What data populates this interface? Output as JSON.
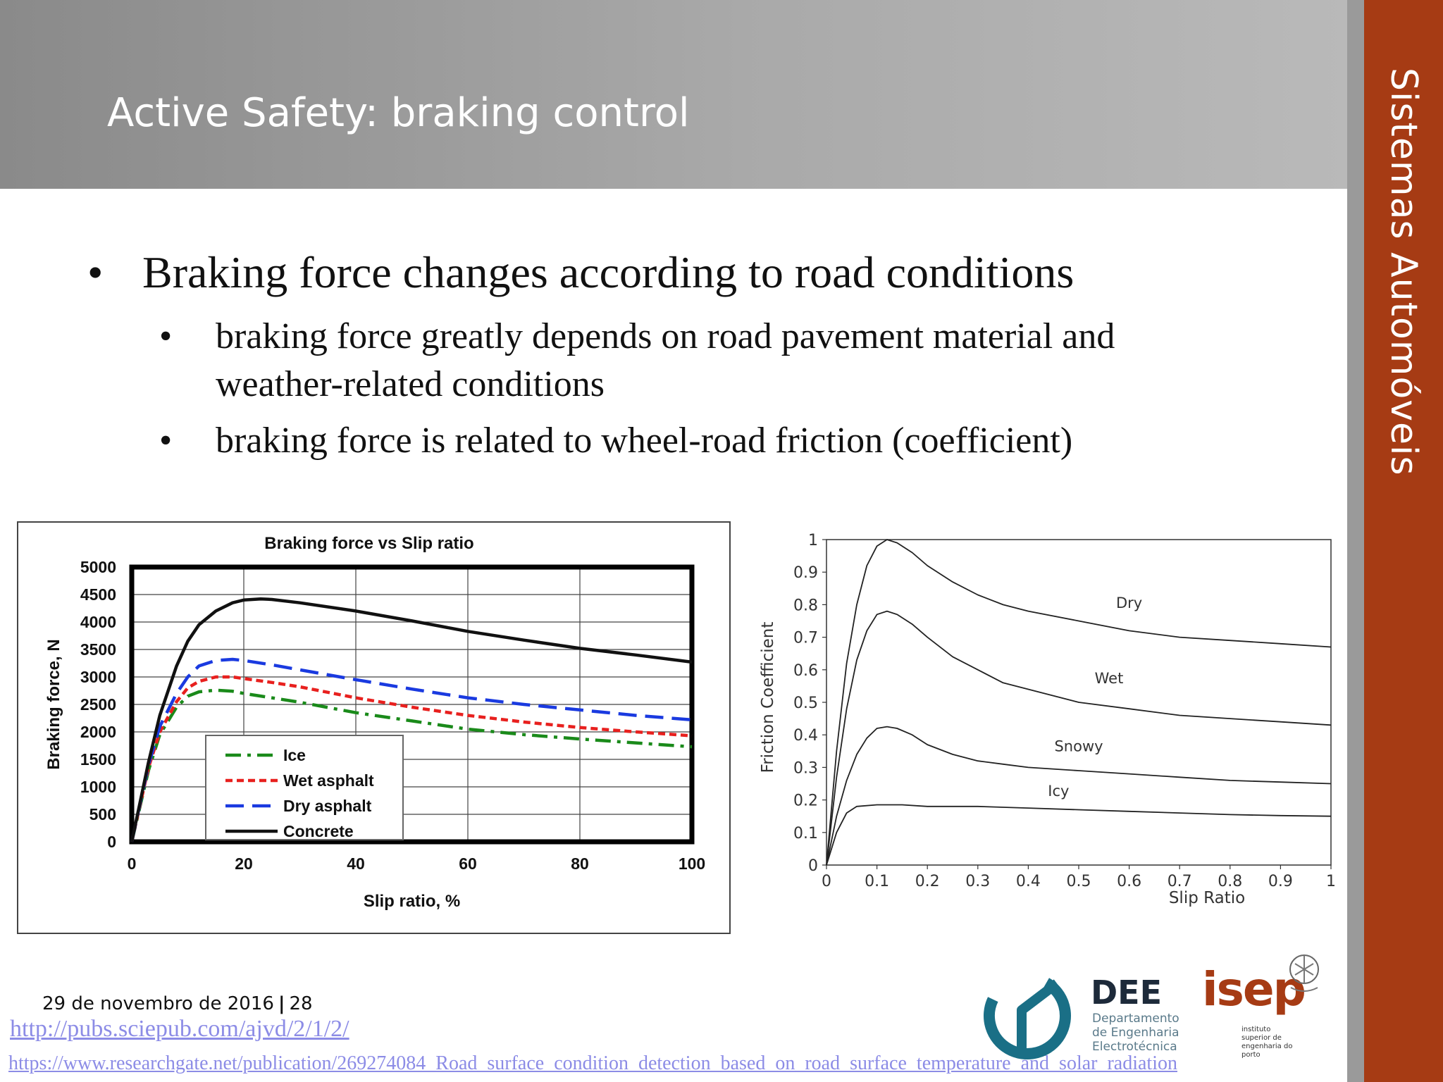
{
  "slide": {
    "title": "Active Safety: braking control",
    "side_label": "Sistemas Automóveis",
    "bullet_symbol": "•",
    "bullets": [
      {
        "text": "Braking force changes according to road conditions"
      },
      {
        "text": "braking force greatly depends on road pavement material and weather-related conditions"
      },
      {
        "text": "braking force is related to wheel-road friction (coefficient)"
      }
    ],
    "footer": {
      "date": "29 de novembro de 2016",
      "separator": "|",
      "page": "28"
    },
    "links": [
      "http://pubs.sciepub.com/ajvd/2/1/2/",
      "https://www.researchgate.net/publication/269274084_Road_surface_condition_detection_based_on_road_surface_temperature_and_solar_radiation"
    ],
    "logos": {
      "dee": {
        "title": "DEE",
        "lines": [
          "Departamento",
          "de Engenharia",
          "Electrotécnica"
        ],
        "color": "#1a6f86"
      },
      "isep": {
        "title": "isep",
        "lines": [
          "instituto",
          "superior de",
          "engenharia do",
          "porto"
        ],
        "color": "#a63b14"
      }
    },
    "colors": {
      "accent": "#a63b14",
      "header": "#9b9b9b"
    }
  },
  "chart_data": [
    {
      "type": "line",
      "title": "Braking force vs Slip ratio",
      "xlabel": "Slip ratio, %",
      "ylabel": "Braking force, N",
      "xlim": [
        0,
        100
      ],
      "ylim": [
        0,
        5000
      ],
      "xticks": [
        0,
        20,
        40,
        60,
        80,
        100
      ],
      "yticks": [
        0,
        500,
        1000,
        1500,
        2000,
        2500,
        3000,
        3500,
        4000,
        4500,
        5000
      ],
      "grid": true,
      "legend_position": "bottom-left",
      "series": [
        {
          "name": "Ice",
          "color": "#1a8a1a",
          "dash": "dashdot",
          "x": [
            0,
            3,
            5,
            8,
            10,
            12,
            15,
            18,
            20,
            25,
            30,
            40,
            50,
            60,
            70,
            80,
            90,
            100
          ],
          "y": [
            0,
            1300,
            1950,
            2450,
            2650,
            2730,
            2760,
            2740,
            2700,
            2620,
            2540,
            2350,
            2200,
            2050,
            1950,
            1870,
            1800,
            1730
          ]
        },
        {
          "name": "Wet asphalt",
          "color": "#e8201e",
          "dash": "dashed",
          "x": [
            0,
            3,
            5,
            8,
            10,
            12,
            15,
            18,
            20,
            25,
            30,
            40,
            50,
            60,
            70,
            80,
            90,
            100
          ],
          "y": [
            0,
            1350,
            2000,
            2550,
            2800,
            2920,
            3000,
            3000,
            2970,
            2900,
            2820,
            2620,
            2450,
            2300,
            2180,
            2080,
            2000,
            1930
          ]
        },
        {
          "name": "Dry asphalt",
          "color": "#1a3ae0",
          "dash": "longdash",
          "x": [
            0,
            3,
            5,
            8,
            10,
            12,
            15,
            18,
            20,
            25,
            30,
            40,
            50,
            60,
            70,
            80,
            90,
            100
          ],
          "y": [
            0,
            1400,
            2100,
            2700,
            3000,
            3200,
            3300,
            3320,
            3300,
            3220,
            3130,
            2950,
            2780,
            2620,
            2500,
            2400,
            2300,
            2220
          ]
        },
        {
          "name": "Concrete",
          "color": "#111111",
          "dash": "solid",
          "x": [
            0,
            3,
            5,
            8,
            10,
            12,
            15,
            18,
            20,
            23,
            25,
            30,
            40,
            50,
            60,
            70,
            80,
            90,
            100
          ],
          "y": [
            0,
            1450,
            2300,
            3200,
            3650,
            3950,
            4200,
            4350,
            4400,
            4420,
            4410,
            4350,
            4200,
            4020,
            3830,
            3670,
            3520,
            3400,
            3270
          ]
        }
      ]
    },
    {
      "type": "line",
      "title": "",
      "xlabel": "Slip Ratio",
      "ylabel": "Friction Coefficient",
      "xlim": [
        0,
        1
      ],
      "ylim": [
        0,
        1
      ],
      "xticks": [
        "0",
        "0.1",
        "0.2",
        "0.3",
        "0.4",
        "0.5",
        "0.6",
        "0.7",
        "0.8",
        "0.9",
        "1"
      ],
      "yticks": [
        "0",
        "0.1",
        "0.2",
        "0.3",
        "0.4",
        "0.5",
        "0.6",
        "0.7",
        "0.8",
        "0.9",
        "1"
      ],
      "grid": false,
      "series": [
        {
          "name": "Dry",
          "color": "#222222",
          "x": [
            0,
            0.02,
            0.04,
            0.06,
            0.08,
            0.1,
            0.12,
            0.14,
            0.17,
            0.2,
            0.25,
            0.3,
            0.35,
            0.4,
            0.5,
            0.6,
            0.7,
            0.8,
            0.9,
            1.0
          ],
          "y": [
            0,
            0.35,
            0.62,
            0.8,
            0.92,
            0.98,
            1.0,
            0.99,
            0.96,
            0.92,
            0.87,
            0.83,
            0.8,
            0.78,
            0.75,
            0.72,
            0.7,
            0.69,
            0.68,
            0.67
          ]
        },
        {
          "name": "Wet",
          "color": "#222222",
          "x": [
            0,
            0.02,
            0.04,
            0.06,
            0.08,
            0.1,
            0.12,
            0.14,
            0.17,
            0.2,
            0.25,
            0.3,
            0.35,
            0.4,
            0.5,
            0.6,
            0.7,
            0.8,
            0.9,
            1.0
          ],
          "y": [
            0,
            0.27,
            0.48,
            0.63,
            0.72,
            0.77,
            0.78,
            0.77,
            0.74,
            0.7,
            0.64,
            0.6,
            0.56,
            0.54,
            0.5,
            0.48,
            0.46,
            0.45,
            0.44,
            0.43
          ]
        },
        {
          "name": "Snowy",
          "color": "#222222",
          "x": [
            0,
            0.02,
            0.04,
            0.06,
            0.08,
            0.1,
            0.12,
            0.14,
            0.17,
            0.2,
            0.25,
            0.3,
            0.35,
            0.4,
            0.5,
            0.6,
            0.7,
            0.8,
            0.9,
            1.0
          ],
          "y": [
            0,
            0.15,
            0.26,
            0.34,
            0.39,
            0.42,
            0.425,
            0.42,
            0.4,
            0.37,
            0.34,
            0.32,
            0.31,
            0.3,
            0.29,
            0.28,
            0.27,
            0.26,
            0.255,
            0.25
          ]
        },
        {
          "name": "Icy",
          "color": "#222222",
          "x": [
            0,
            0.02,
            0.04,
            0.06,
            0.1,
            0.15,
            0.2,
            0.3,
            0.4,
            0.5,
            0.6,
            0.7,
            0.8,
            0.9,
            1.0
          ],
          "y": [
            0,
            0.1,
            0.16,
            0.18,
            0.185,
            0.185,
            0.18,
            0.18,
            0.175,
            0.17,
            0.165,
            0.16,
            0.155,
            0.152,
            0.15
          ]
        }
      ]
    }
  ]
}
